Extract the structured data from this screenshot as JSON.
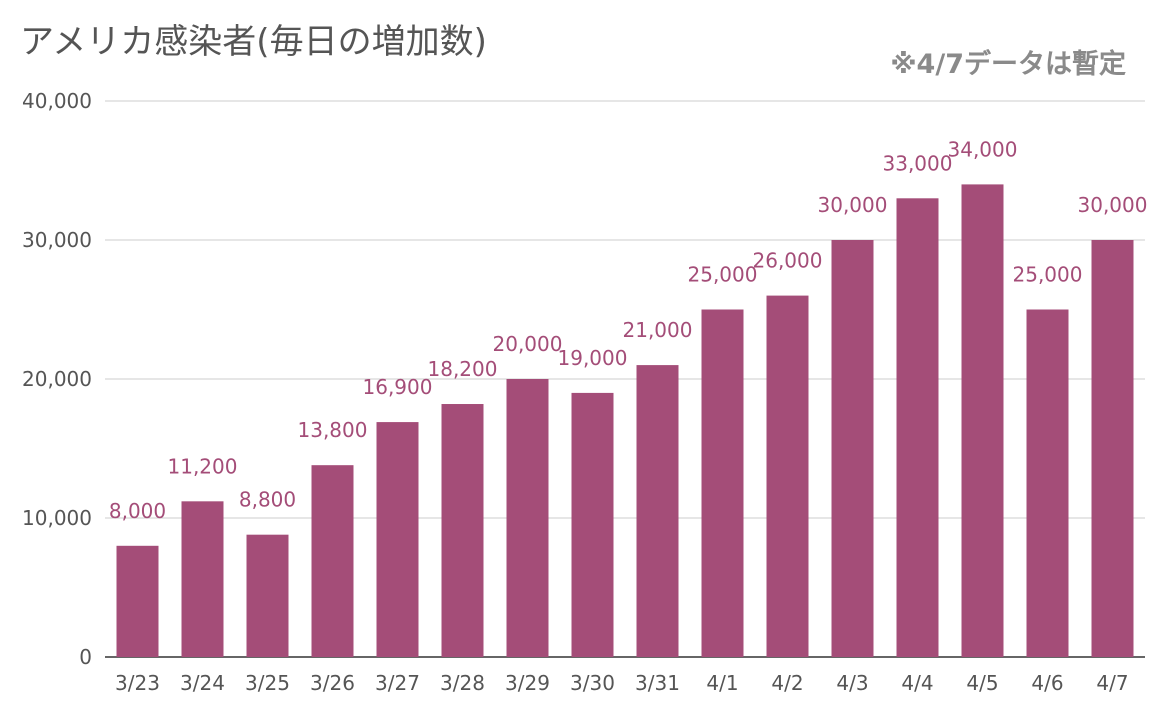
{
  "chart_data": {
    "type": "bar",
    "title": "アメリカ感染者(毎日の増加数)",
    "note": "※4/7データは暫定",
    "categories": [
      "3/23",
      "3/24",
      "3/25",
      "3/26",
      "3/27",
      "3/28",
      "3/29",
      "3/30",
      "3/31",
      "4/1",
      "4/2",
      "4/3",
      "4/4",
      "4/5",
      "4/6",
      "4/7"
    ],
    "values": [
      8000,
      11200,
      8800,
      13800,
      16900,
      18200,
      20000,
      19000,
      21000,
      25000,
      26000,
      30000,
      33000,
      34000,
      25000,
      30000
    ],
    "data_labels": [
      "8,000",
      "11,200",
      "8,800",
      "13,800",
      "16,900",
      "18,200",
      "20,000",
      "19,000",
      "21,000",
      "25,000",
      "26,000",
      "30,000",
      "33,000",
      "34,000",
      "25,000",
      "30,000"
    ],
    "y_ticks": [
      0,
      10000,
      20000,
      30000,
      40000
    ],
    "y_tick_labels": [
      "0",
      "10,000",
      "20,000",
      "30,000",
      "40,000"
    ],
    "ylim": [
      0,
      40000
    ],
    "grid": true,
    "bar_color": "#a44d78",
    "label_color": "#a44d78",
    "grid_color": "#cccccc",
    "text_color": "#555555"
  }
}
